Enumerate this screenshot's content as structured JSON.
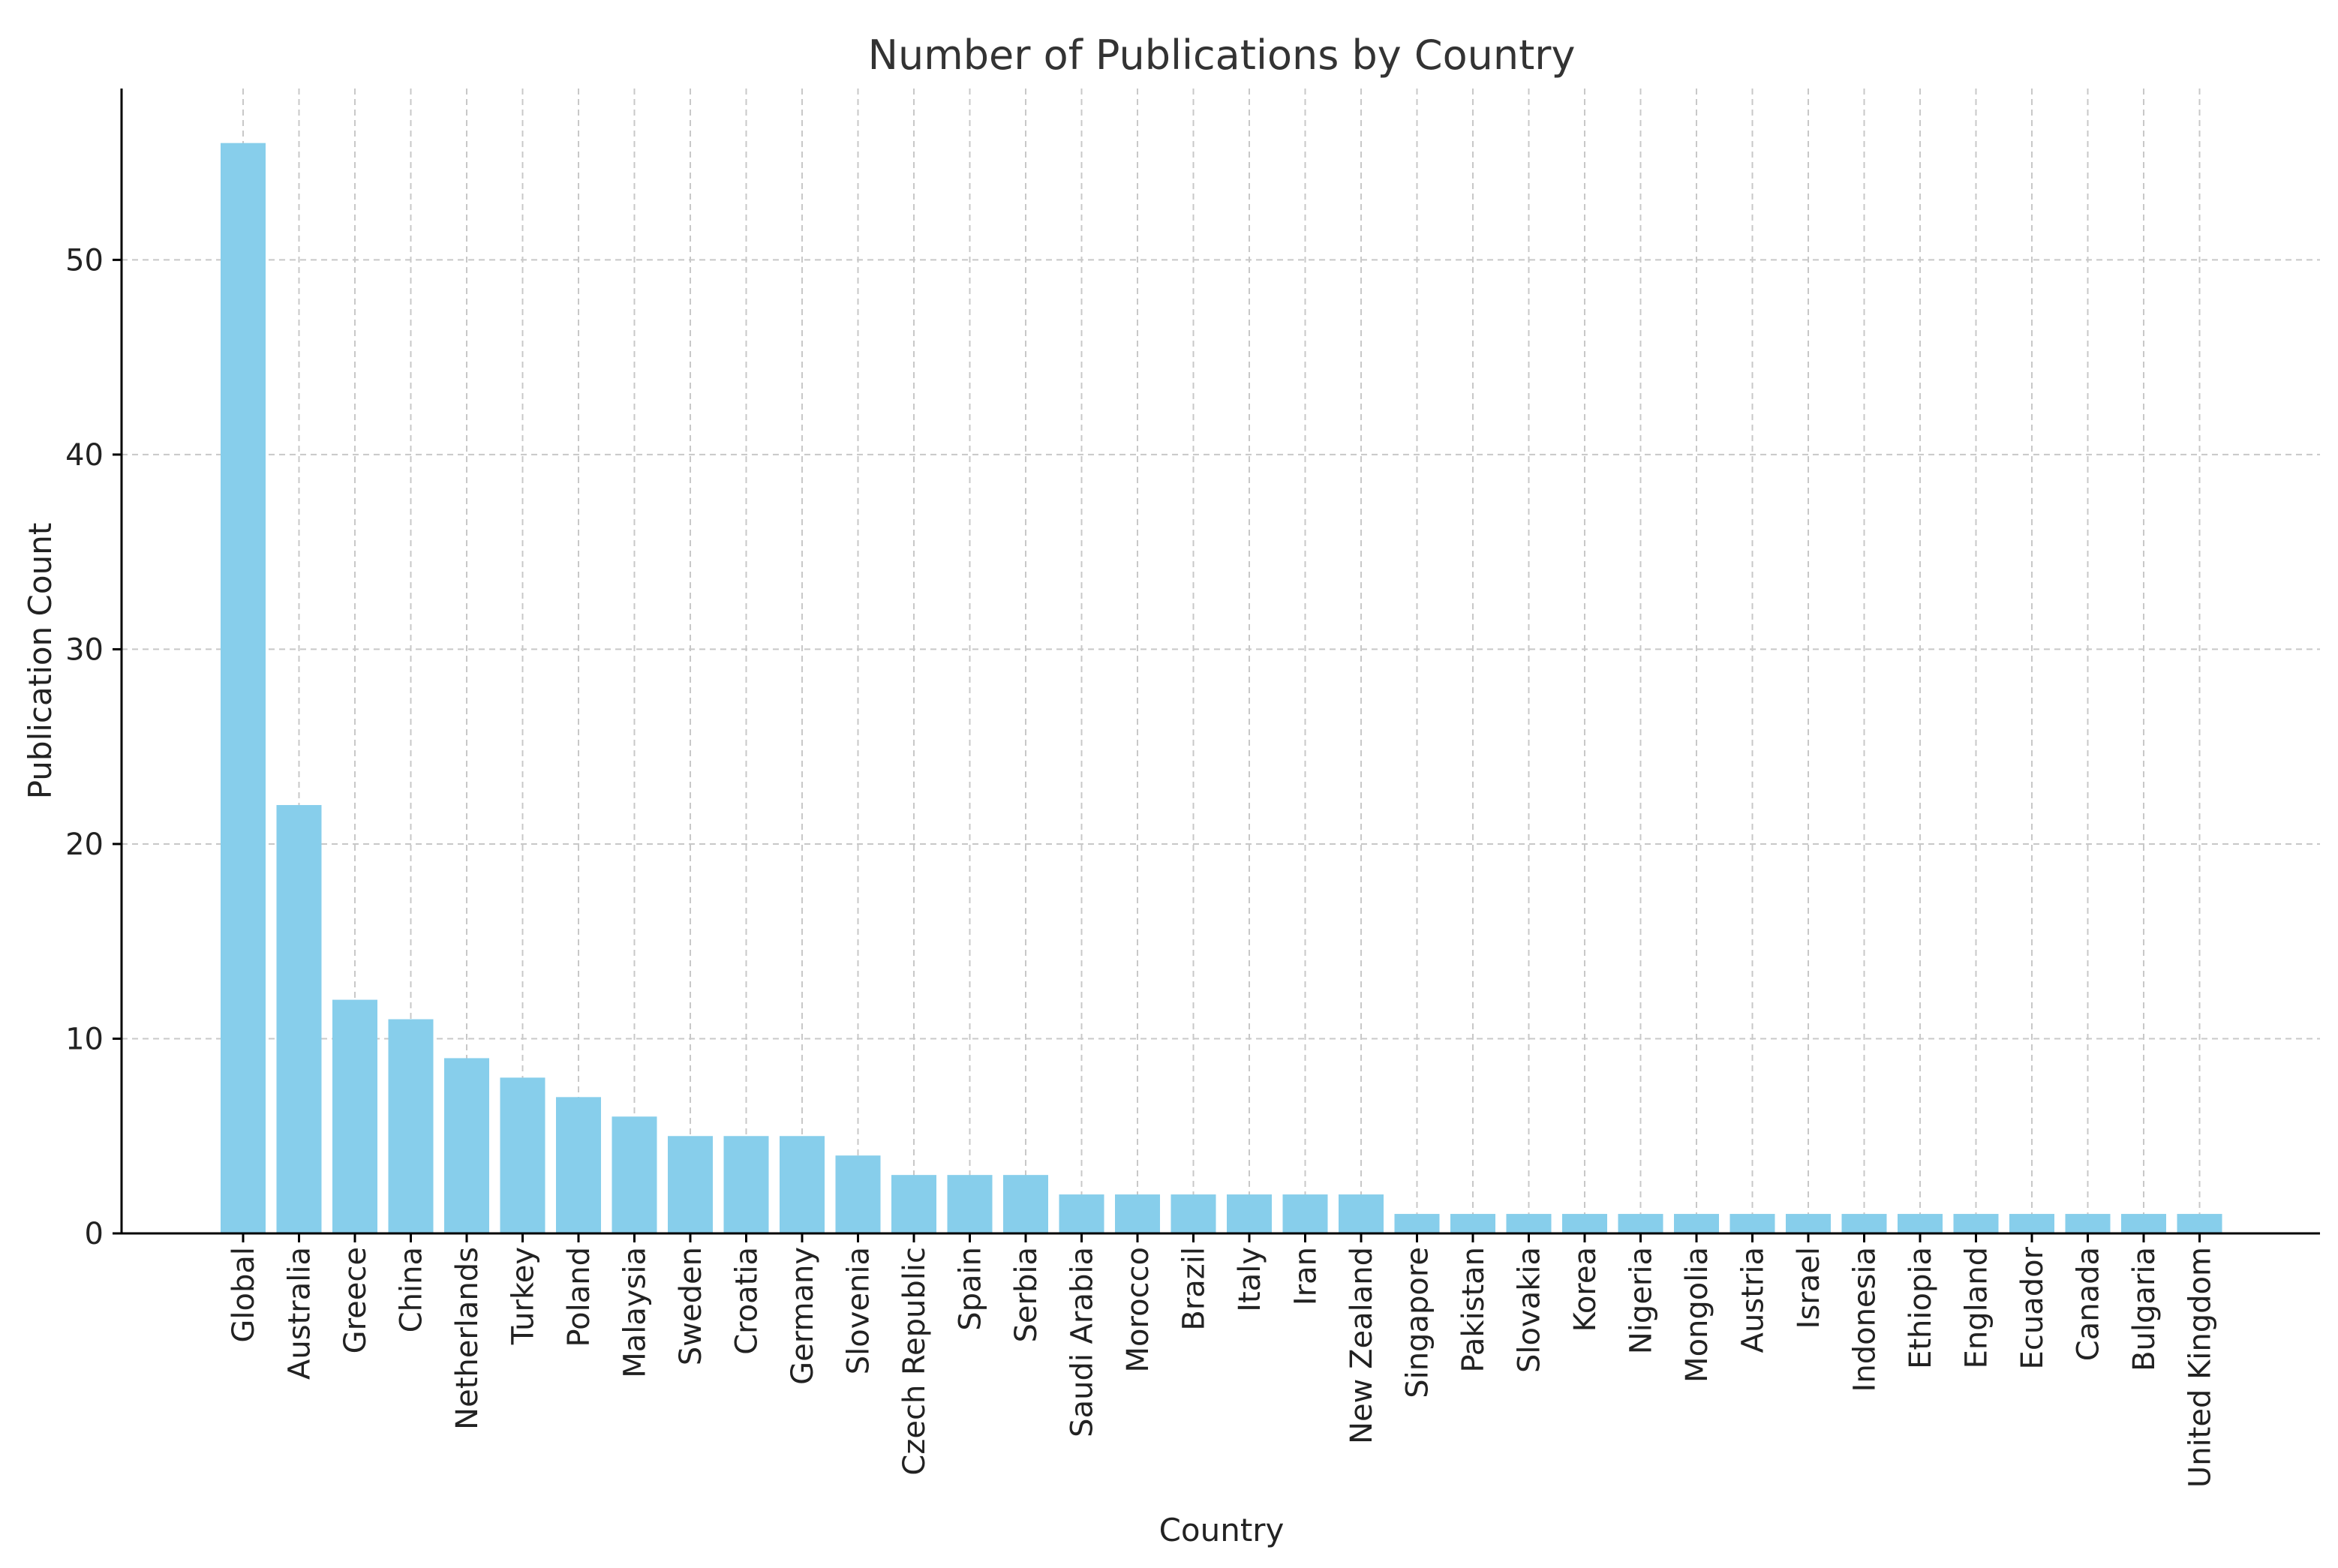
{
  "chart_data": {
    "type": "bar",
    "title": "Number of Publications by Country",
    "xlabel": "Country",
    "ylabel": "Publication Count",
    "ylim": [
      0,
      58.8
    ],
    "yticks": [
      0,
      10,
      20,
      30,
      40,
      50
    ],
    "grid": true,
    "bar_color": "#87CEEB",
    "categories": [
      "Global",
      "Australia",
      "Greece",
      "China",
      "Netherlands",
      "Turkey",
      "Poland",
      "Malaysia",
      "Sweden",
      "Croatia",
      "Germany",
      "Slovenia",
      "Czech Republic",
      "Spain",
      "Serbia",
      "Saudi Arabia",
      "Morocco",
      "Brazil",
      "Italy",
      "Iran",
      "New Zealand",
      "Singapore",
      "Pakistan",
      "Slovakia",
      "Korea",
      "Nigeria",
      "Mongolia",
      "Austria",
      "Israel",
      "Indonesia",
      "Ethiopia",
      "England",
      "Ecuador",
      "Canada",
      "Bulgaria",
      "United Kingdom"
    ],
    "values": [
      56,
      22,
      12,
      11,
      9,
      8,
      7,
      6,
      5,
      5,
      5,
      4,
      3,
      3,
      3,
      2,
      2,
      2,
      2,
      2,
      2,
      1,
      1,
      1,
      1,
      1,
      1,
      1,
      1,
      1,
      1,
      1,
      1,
      1,
      1,
      1
    ]
  }
}
